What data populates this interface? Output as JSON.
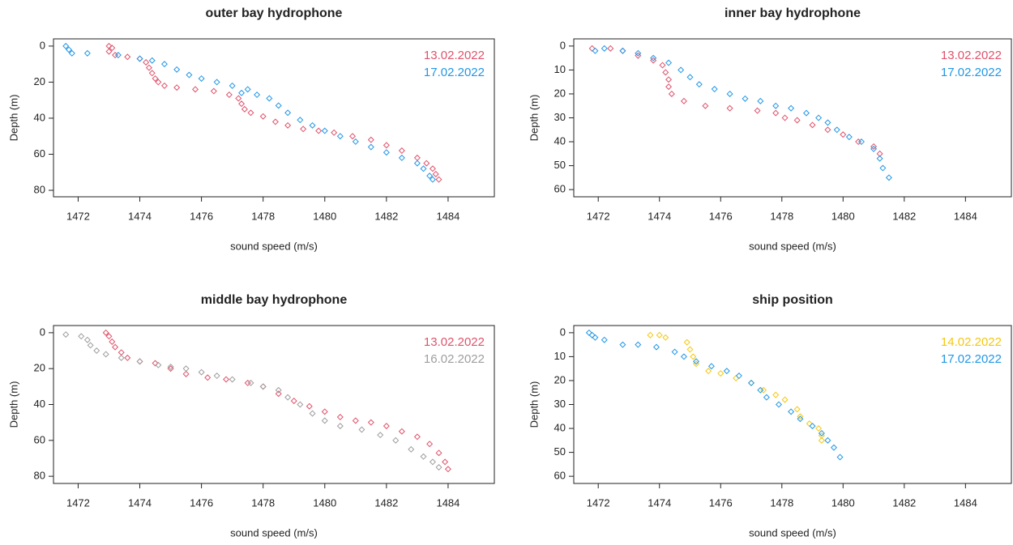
{
  "chart_data": [
    {
      "type": "scatter",
      "title": "outer bay hydrophone",
      "xlabel": "sound speed (m/s)",
      "ylabel": "Depth (m)",
      "xlim": [
        1471.2,
        1485.5
      ],
      "ylim": [
        -4,
        83.6
      ],
      "y_inverted": true,
      "legend": "top-right",
      "xticks": [
        1472,
        1474,
        1476,
        1478,
        1480,
        1482,
        1484
      ],
      "yticks": [
        0,
        20,
        40,
        60,
        80
      ],
      "series": [
        {
          "name": "13.02.2022",
          "color": "#DF536B",
          "x": [
            1473.0,
            1473.1,
            1473.0,
            1473.2,
            1473.6,
            1474.0,
            1474.2,
            1474.3,
            1474.4,
            1474.5,
            1474.6,
            1474.8,
            1475.2,
            1475.8,
            1476.4,
            1476.9,
            1477.2,
            1477.3,
            1477.4,
            1477.6,
            1478.0,
            1478.4,
            1478.8,
            1479.3,
            1479.8,
            1480.3,
            1480.9,
            1481.5,
            1482.0,
            1482.5,
            1483.0,
            1483.3,
            1483.5,
            1483.6,
            1483.7
          ],
          "y": [
            0,
            1,
            3,
            5,
            6,
            7,
            9,
            12,
            15,
            18,
            20,
            22,
            23,
            24,
            25,
            27,
            29,
            32,
            35,
            37,
            39,
            42,
            44,
            46,
            47,
            48,
            50,
            52,
            55,
            58,
            62,
            65,
            68,
            71,
            74
          ]
        },
        {
          "name": "17.02.2022",
          "color": "#2297E6",
          "x": [
            1471.6,
            1471.7,
            1471.8,
            1472.3,
            1473.3,
            1474.0,
            1474.4,
            1474.8,
            1475.2,
            1475.6,
            1476.0,
            1476.5,
            1477.0,
            1477.5,
            1477.3,
            1477.8,
            1478.2,
            1478.5,
            1478.8,
            1479.2,
            1479.6,
            1480.0,
            1480.5,
            1481.0,
            1481.5,
            1482.0,
            1482.5,
            1483.0,
            1483.2,
            1483.4,
            1483.5
          ],
          "y": [
            0,
            2,
            4,
            4,
            5,
            7,
            8,
            10,
            13,
            16,
            18,
            20,
            22,
            24,
            26,
            27,
            29,
            33,
            37,
            41,
            44,
            47,
            50,
            53,
            56,
            59,
            62,
            65,
            68,
            72,
            74
          ]
        }
      ]
    },
    {
      "type": "scatter",
      "title": "inner bay hydrophone",
      "xlabel": "sound speed (m/s)",
      "ylabel": "Depth (m)",
      "xlim": [
        1471.2,
        1485.5
      ],
      "ylim": [
        -3,
        63
      ],
      "y_inverted": true,
      "legend": "top-right",
      "xticks": [
        1472,
        1474,
        1476,
        1478,
        1480,
        1482,
        1484
      ],
      "yticks": [
        0,
        10,
        20,
        30,
        40,
        50,
        60
      ],
      "series": [
        {
          "name": "13.02.2022",
          "color": "#DF536B",
          "x": [
            1471.8,
            1472.4,
            1472.8,
            1473.3,
            1473.8,
            1474.1,
            1474.2,
            1474.3,
            1474.3,
            1474.4,
            1474.8,
            1475.5,
            1476.3,
            1477.2,
            1477.8,
            1478.1,
            1478.5,
            1479.0,
            1479.5,
            1480.0,
            1480.5,
            1481.0,
            1481.2
          ],
          "y": [
            1,
            1,
            2,
            4,
            6,
            8,
            11,
            14,
            17,
            20,
            23,
            25,
            26,
            27,
            28,
            30,
            31,
            33,
            35,
            37,
            40,
            42,
            45
          ]
        },
        {
          "name": "17.02.2022",
          "color": "#2297E6",
          "x": [
            1471.9,
            1472.2,
            1472.8,
            1473.3,
            1473.8,
            1474.3,
            1474.7,
            1475.0,
            1475.3,
            1475.8,
            1476.3,
            1476.8,
            1477.3,
            1477.8,
            1478.3,
            1478.8,
            1479.2,
            1479.5,
            1479.8,
            1480.2,
            1480.6,
            1481.0,
            1481.2,
            1481.3,
            1481.5
          ],
          "y": [
            2,
            1,
            2,
            3,
            5,
            7,
            10,
            13,
            16,
            18,
            20,
            22,
            23,
            25,
            26,
            28,
            30,
            32,
            35,
            38,
            40,
            43,
            47,
            51,
            55
          ]
        }
      ]
    },
    {
      "type": "scatter",
      "title": "middle bay hydrophone",
      "xlabel": "sound speed (m/s)",
      "ylabel": "Depth (m)",
      "xlim": [
        1471.2,
        1485.5
      ],
      "ylim": [
        -4,
        84
      ],
      "y_inverted": true,
      "legend": "top-right",
      "xticks": [
        1472,
        1474,
        1476,
        1478,
        1480,
        1482,
        1484
      ],
      "yticks": [
        0,
        20,
        40,
        60,
        80
      ],
      "series": [
        {
          "name": "13.02.2022",
          "color": "#DF536B",
          "x": [
            1472.9,
            1473.0,
            1473.1,
            1473.2,
            1473.4,
            1473.6,
            1474.0,
            1474.5,
            1475.0,
            1475.5,
            1476.2,
            1476.8,
            1477.5,
            1478.0,
            1478.5,
            1479.0,
            1479.5,
            1480.0,
            1480.5,
            1481.0,
            1481.5,
            1482.0,
            1482.5,
            1483.0,
            1483.4,
            1483.7,
            1483.9,
            1484.0
          ],
          "y": [
            0,
            2,
            5,
            8,
            11,
            14,
            16,
            17,
            20,
            23,
            25,
            26,
            28,
            30,
            34,
            38,
            41,
            44,
            47,
            49,
            50,
            52,
            55,
            58,
            62,
            67,
            72,
            76
          ]
        },
        {
          "name": "16.02.2022",
          "color": "#9E9E9E",
          "x": [
            1471.6,
            1472.1,
            1472.3,
            1472.4,
            1472.6,
            1472.9,
            1473.4,
            1474.0,
            1474.6,
            1475.0,
            1475.5,
            1476.0,
            1476.5,
            1477.0,
            1477.6,
            1478.0,
            1478.5,
            1478.8,
            1479.2,
            1479.6,
            1480.0,
            1480.5,
            1481.2,
            1481.8,
            1482.3,
            1482.8,
            1483.2,
            1483.5,
            1483.7
          ],
          "y": [
            1,
            2,
            4,
            7,
            10,
            12,
            14,
            16,
            18,
            19,
            20,
            22,
            24,
            26,
            28,
            30,
            32,
            36,
            40,
            45,
            49,
            52,
            54,
            57,
            60,
            65,
            69,
            72,
            75
          ]
        }
      ]
    },
    {
      "type": "scatter",
      "title": "ship position",
      "xlabel": "sound speed (m/s)",
      "ylabel": "Depth (m)",
      "xlim": [
        1471.2,
        1485.5
      ],
      "ylim": [
        -3,
        63
      ],
      "y_inverted": true,
      "legend": "top-right",
      "xticks": [
        1472,
        1474,
        1476,
        1478,
        1480,
        1482,
        1484
      ],
      "yticks": [
        0,
        10,
        20,
        30,
        40,
        50,
        60
      ],
      "series": [
        {
          "name": "14.02.2022",
          "color": "#F5C710",
          "x": [
            1473.7,
            1474.0,
            1474.2,
            1474.9,
            1475.0,
            1475.1,
            1475.2,
            1475.6,
            1476.0,
            1476.5,
            1477.0,
            1477.4,
            1477.8,
            1478.1,
            1478.5,
            1478.6,
            1478.9,
            1479.2,
            1479.3,
            1479.3
          ],
          "y": [
            1,
            1,
            2,
            4,
            7,
            10,
            13,
            16,
            17,
            19,
            21,
            24,
            26,
            28,
            32,
            35,
            38,
            40,
            43,
            45
          ]
        },
        {
          "name": "17.02.2022",
          "color": "#2297E6",
          "x": [
            1471.7,
            1471.8,
            1471.9,
            1472.2,
            1472.8,
            1473.3,
            1473.9,
            1474.5,
            1474.8,
            1475.2,
            1475.7,
            1476.2,
            1476.6,
            1477.0,
            1477.3,
            1477.5,
            1477.9,
            1478.3,
            1478.6,
            1479.0,
            1479.3,
            1479.5,
            1479.7,
            1479.9
          ],
          "y": [
            0,
            1,
            2,
            3,
            5,
            5,
            6,
            8,
            10,
            12,
            14,
            16,
            18,
            21,
            24,
            27,
            30,
            33,
            36,
            39,
            42,
            45,
            48,
            52
          ]
        }
      ]
    }
  ]
}
